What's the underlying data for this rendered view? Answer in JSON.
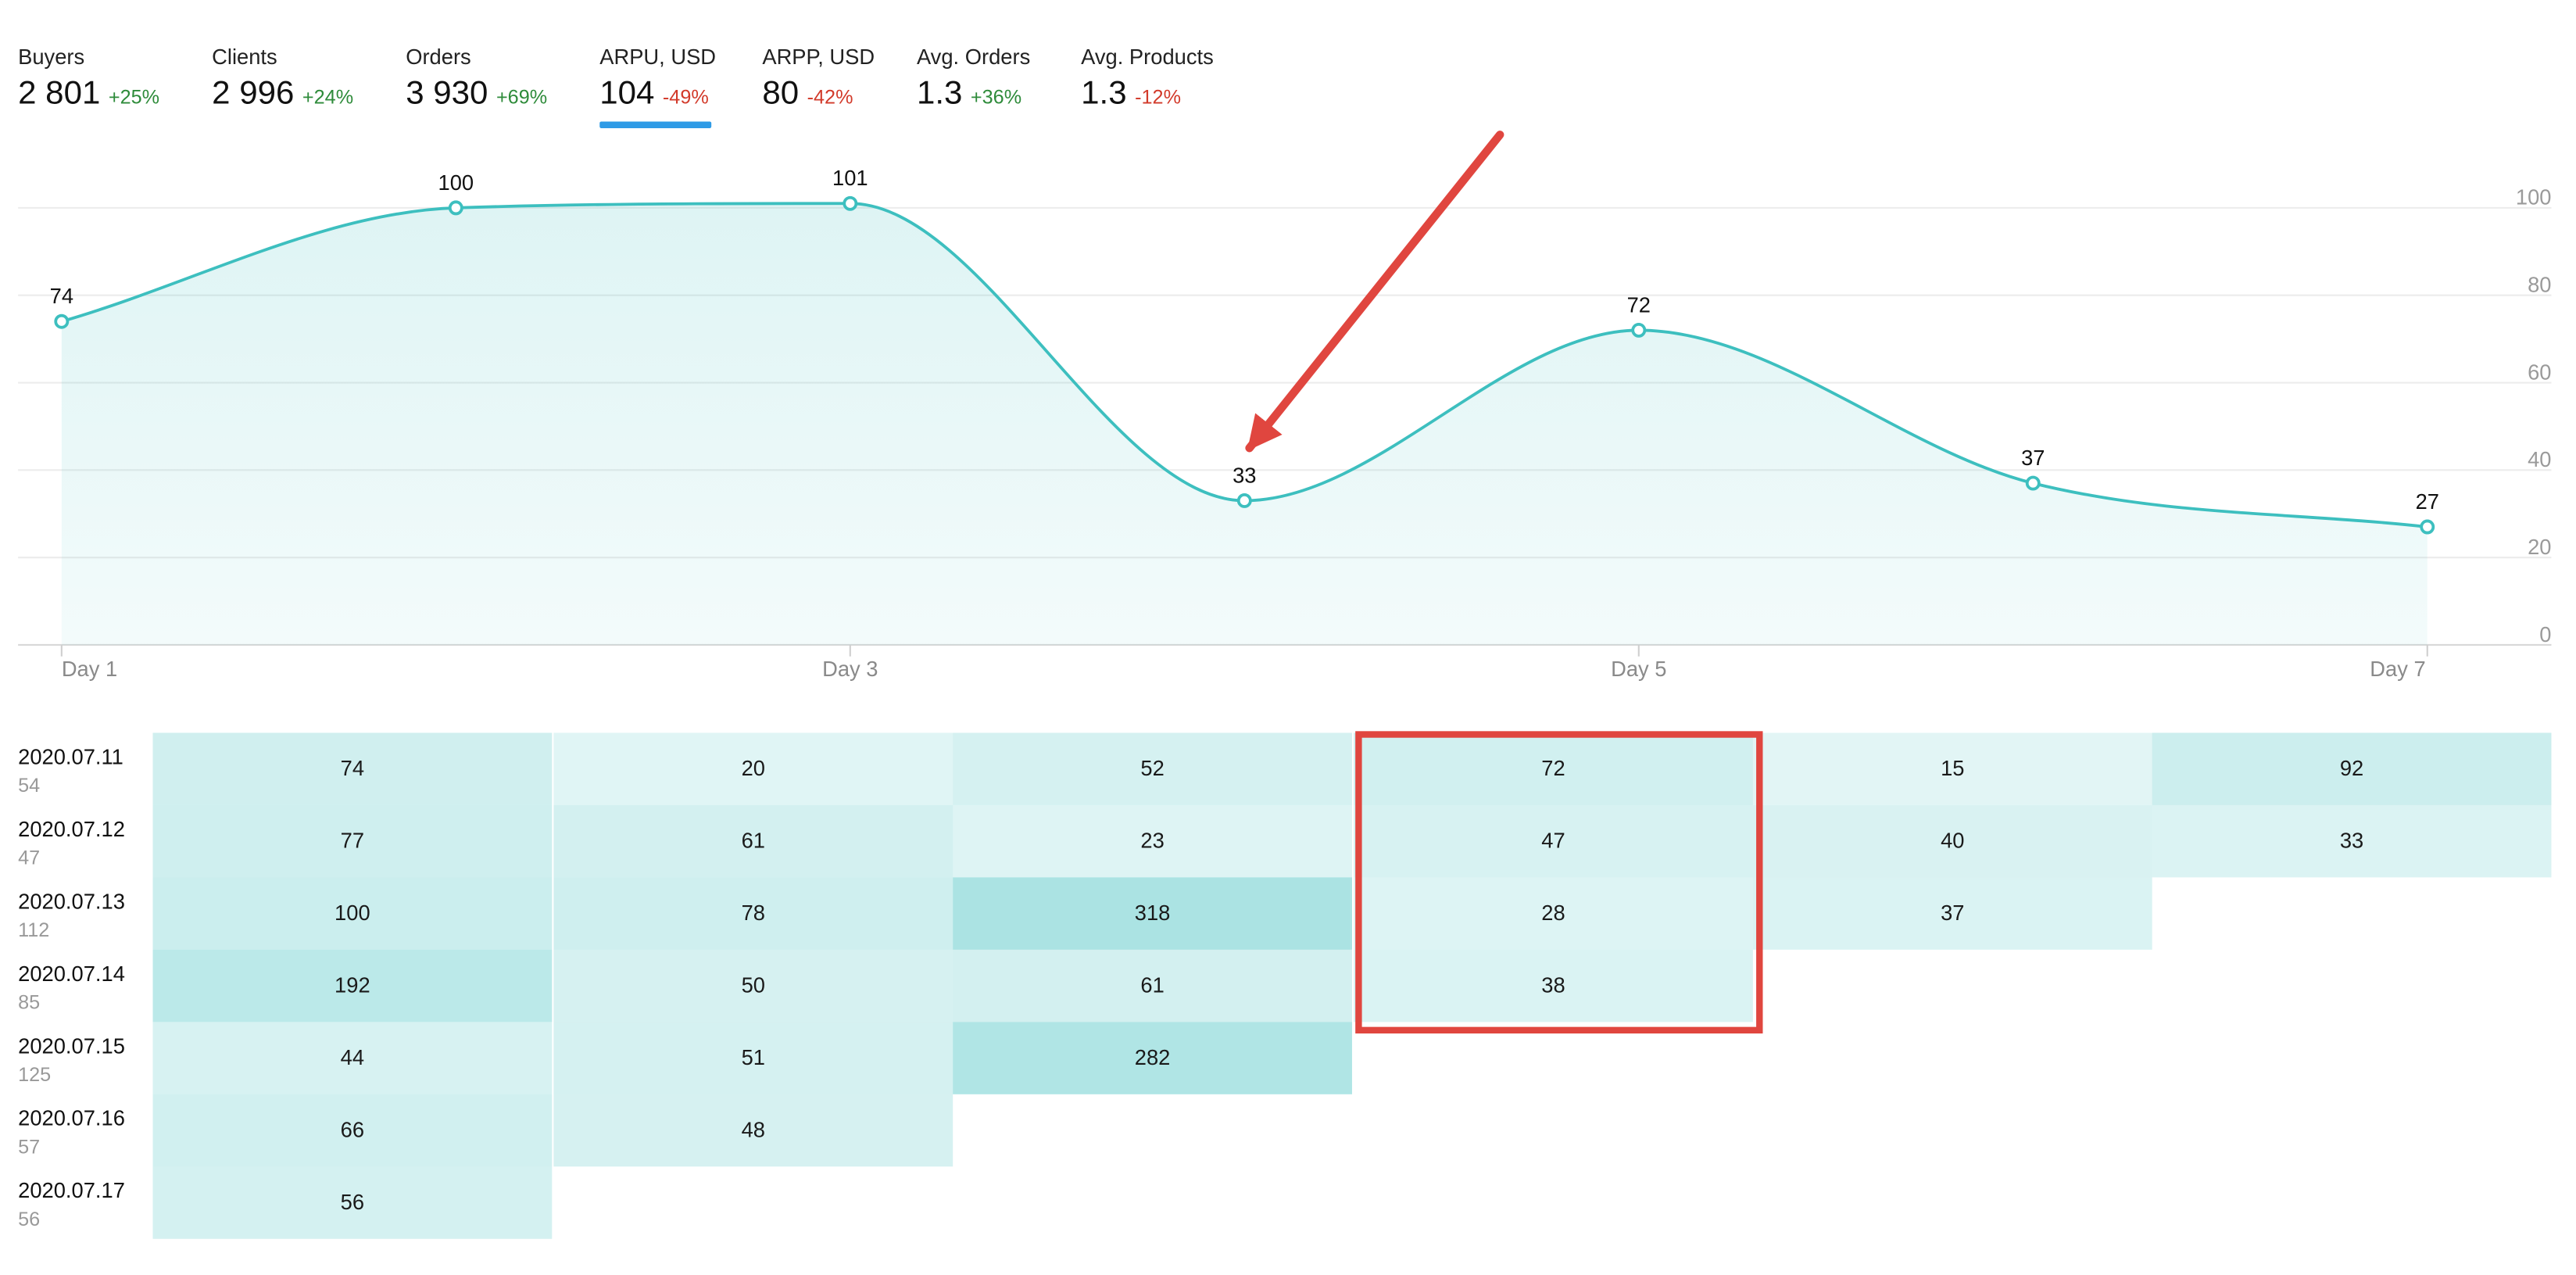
{
  "metrics": [
    {
      "label": "Buyers",
      "value": "2 801",
      "delta": "+25%",
      "trend": "up",
      "active": false
    },
    {
      "label": "Clients",
      "value": "2 996",
      "delta": "+24%",
      "trend": "up",
      "active": false
    },
    {
      "label": "Orders",
      "value": "3 930",
      "delta": "+69%",
      "trend": "up",
      "active": false
    },
    {
      "label": "ARPU, USD",
      "value": "104",
      "delta": "-49%",
      "trend": "down",
      "active": true
    },
    {
      "label": "ARPP, USD",
      "value": "80",
      "delta": "-42%",
      "trend": "down",
      "active": false
    },
    {
      "label": "Avg. Orders",
      "value": "1.3",
      "delta": "+36%",
      "trend": "up",
      "active": false
    },
    {
      "label": "Avg. Products",
      "value": "1.3",
      "delta": "-12%",
      "trend": "down",
      "active": false
    }
  ],
  "chart_data": {
    "type": "area",
    "x": [
      1,
      2,
      3,
      4,
      5,
      6,
      7
    ],
    "values": [
      74,
      100,
      101,
      33,
      72,
      37,
      27
    ],
    "x_tick_labels": [
      {
        "x": 1,
        "label": "Day 1"
      },
      {
        "x": 3,
        "label": "Day 3"
      },
      {
        "x": 5,
        "label": "Day 5"
      },
      {
        "x": 7,
        "label": "Day 7"
      }
    ],
    "y_ticks": [
      0,
      20,
      40,
      60,
      80,
      100
    ],
    "ylim": [
      0,
      100
    ],
    "grid": true,
    "y_axis_position": "right",
    "line_color": "#3dbfbf",
    "fill_color": "#3dbfbf",
    "annotation": {
      "type": "arrow",
      "points_to_x": 4,
      "color": "#e0463f"
    }
  },
  "cohort_table": {
    "rows": [
      {
        "date": "2020.07.11",
        "count": "54",
        "cells": [
          "74",
          "20",
          "52",
          "72",
          "15",
          "92"
        ]
      },
      {
        "date": "2020.07.12",
        "count": "47",
        "cells": [
          "77",
          "61",
          "23",
          "47",
          "40",
          "33"
        ]
      },
      {
        "date": "2020.07.13",
        "count": "112",
        "cells": [
          "100",
          "78",
          "318",
          "28",
          "37"
        ]
      },
      {
        "date": "2020.07.14",
        "count": "85",
        "cells": [
          "192",
          "50",
          "61",
          "38"
        ]
      },
      {
        "date": "2020.07.15",
        "count": "125",
        "cells": [
          "44",
          "51",
          "282"
        ]
      },
      {
        "date": "2020.07.16",
        "count": "57",
        "cells": [
          "66",
          "48"
        ]
      },
      {
        "date": "2020.07.17",
        "count": "56",
        "cells": [
          "56"
        ]
      }
    ],
    "cell_color": "#3dbfbf",
    "highlight": {
      "column_index": 3,
      "first_row": 0,
      "last_row": 3,
      "color": "#e0463f"
    }
  }
}
